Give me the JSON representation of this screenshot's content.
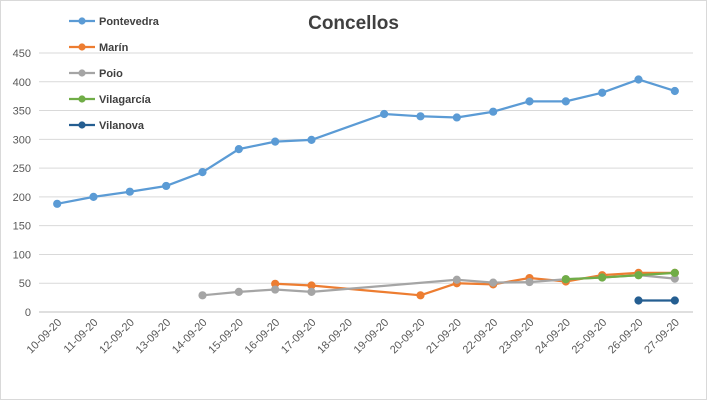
{
  "chart_data": {
    "type": "line",
    "title": "Concellos",
    "xlabel": "",
    "ylabel": "",
    "ylim": [
      0,
      450
    ],
    "yticks": [
      0,
      50,
      100,
      150,
      200,
      250,
      300,
      350,
      400,
      450
    ],
    "grid": true,
    "legend_position": "top-left",
    "categories": [
      "10-09-20",
      "11-09-20",
      "12-09-20",
      "13-09-20",
      "14-09-20",
      "15-09-20",
      "16-09-20",
      "17-09-20",
      "18-09-20",
      "19-09-20",
      "20-09-20",
      "21-09-20",
      "22-09-20",
      "23-09-20",
      "24-09-20",
      "25-09-20",
      "26-09-20",
      "27-09-20"
    ],
    "series": [
      {
        "name": "Pontevedra",
        "color": "#5b9bd5",
        "values": [
          188,
          200,
          209,
          219,
          243,
          283,
          296,
          299,
          null,
          344,
          340,
          338,
          348,
          366,
          366,
          381,
          404,
          384
        ]
      },
      {
        "name": "Marín",
        "color": "#ed7d31",
        "values": [
          null,
          null,
          null,
          null,
          null,
          null,
          49,
          46,
          null,
          null,
          29,
          50,
          48,
          59,
          53,
          64,
          68,
          68
        ]
      },
      {
        "name": "Poio",
        "color": "#a5a5a5",
        "values": [
          null,
          null,
          null,
          null,
          29,
          35,
          39,
          35,
          null,
          null,
          null,
          56,
          51,
          52,
          57,
          60,
          64,
          58
        ]
      },
      {
        "name": "Vilagarcía",
        "color": "#70ad47",
        "values": [
          null,
          null,
          null,
          null,
          null,
          null,
          null,
          null,
          null,
          null,
          null,
          null,
          null,
          null,
          57,
          60,
          64,
          68
        ]
      },
      {
        "name": "Vilanova",
        "color": "#255e91",
        "values": [
          null,
          null,
          null,
          null,
          null,
          null,
          null,
          null,
          null,
          null,
          null,
          null,
          null,
          null,
          null,
          null,
          20,
          20
        ]
      }
    ]
  }
}
